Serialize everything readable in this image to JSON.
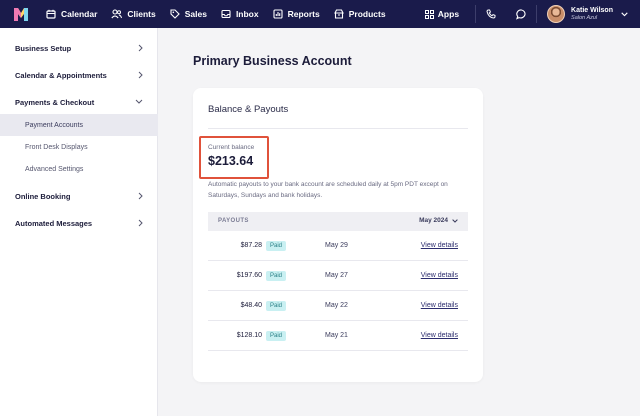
{
  "topnav": {
    "items": [
      {
        "label": "Calendar",
        "icon": "calendar-icon"
      },
      {
        "label": "Clients",
        "icon": "users-icon"
      },
      {
        "label": "Sales",
        "icon": "tag-icon"
      },
      {
        "label": "Inbox",
        "icon": "inbox-icon"
      },
      {
        "label": "Reports",
        "icon": "chart-icon"
      },
      {
        "label": "Products",
        "icon": "box-icon"
      }
    ],
    "apps_label": "Apps",
    "user": {
      "name": "Katie Wilson",
      "business": "Salon Azul"
    },
    "colors": {
      "bar": "#1a1b4b",
      "text": "#ffffff"
    }
  },
  "sidebar": {
    "items": [
      {
        "label": "Business Setup"
      },
      {
        "label": "Calendar & Appointments"
      },
      {
        "label": "Payments & Checkout"
      },
      {
        "label": "Online Booking"
      },
      {
        "label": "Automated Messages"
      }
    ],
    "subitems": [
      {
        "label": "Payment Accounts",
        "active": true
      },
      {
        "label": "Front Desk Displays"
      },
      {
        "label": "Advanced Settings"
      }
    ]
  },
  "main": {
    "title": "Primary Business Account",
    "card": {
      "title": "Balance & Payouts",
      "balance_label": "Current balance",
      "balance_value": "$213.64",
      "note": "Automatic payouts to your bank account are scheduled daily at 5pm PDT except on Saturdays, Sundays and bank holidays.",
      "table": {
        "header": "PAYOUTS",
        "month": "May 2024",
        "rows": [
          {
            "amount": "$87.28",
            "status": "Paid",
            "date": "May 29",
            "link": "View details"
          },
          {
            "amount": "$197.60",
            "status": "Paid",
            "date": "May 27",
            "link": "View details"
          },
          {
            "amount": "$48.40",
            "status": "Paid",
            "date": "May 22",
            "link": "View details"
          },
          {
            "amount": "$128.10",
            "status": "Paid",
            "date": "May 21",
            "link": "View details"
          }
        ]
      }
    },
    "colors": {
      "highlight": "#e0523b",
      "badge_bg": "#c9f0f2",
      "badge_text": "#2a7f86"
    }
  }
}
